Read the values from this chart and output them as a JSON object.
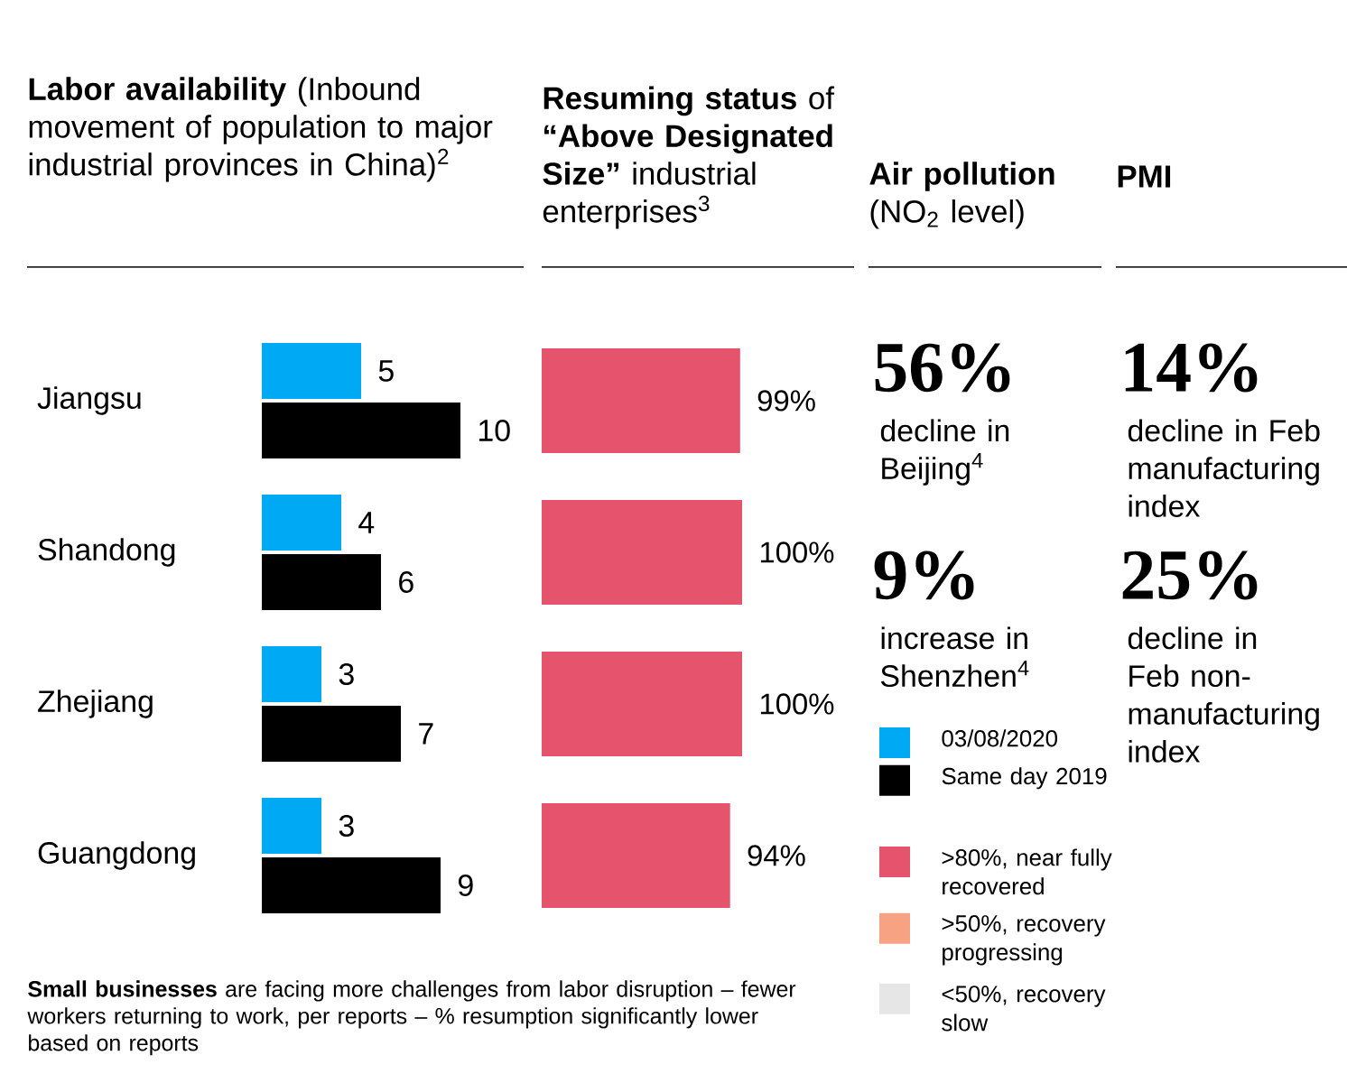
{
  "chart_data": [
    {
      "type": "bar",
      "orientation": "horizontal",
      "title": "**Labor availability** (Inbound movement of population to major industrial provinces in China)$^{2}$",
      "categories": [
        "Jiangsu",
        "Shandong",
        "Zhejiang",
        "Guangdong"
      ],
      "series": [
        {
          "name": "03/08/2020",
          "color": "#00a9f4",
          "values": [
            5,
            4,
            3,
            3
          ]
        },
        {
          "name": "Same day 2019",
          "color": "#000000",
          "values": [
            10,
            6,
            7,
            9
          ]
        }
      ],
      "data_labels": true,
      "legend": "right",
      "tick_labels": "y",
      "annotations": [
        "**Small businesses** are facing more challenges from labor disruption – fewer workers returning to work, per reports – % resumption significantly lower based on reports"
      ]
    },
    {
      "type": "bar",
      "orientation": "horizontal",
      "title": "**Resuming status** of **“Above Designated Size”** industrial enterprises$^{3}$",
      "categories": [
        null,
        null,
        null,
        null
      ],
      "series": [
        {
          "name": ">80%, near fully recovered",
          "color": "#e5546c",
          "values": [
            99,
            100,
            100,
            94
          ],
          "value_labels": [
            "99%",
            "100%",
            "100%",
            "94%"
          ]
        },
        {
          "name": ">50%, recovery progressing",
          "color": "#f6a283",
          "values": [
            null,
            null,
            null,
            null
          ]
        },
        {
          "name": "<50%, recovery slow",
          "color": "#e6e6e6",
          "values": [
            null,
            null,
            null,
            null
          ]
        }
      ],
      "legend": "right",
      "tick_labels": false
    },
    {
      "type": "other",
      "title": "**Air pollution** (NO$_{2}$ level)",
      "annotations": [
        "56%",
        "decline in Beijing$^{4}$",
        "9%",
        "increase in Shenzhen$^{4}$"
      ]
    },
    {
      "type": "other",
      "title": "**PMI**",
      "annotations": [
        "14%",
        "decline in Feb manufacturing index",
        "25%",
        "decline in Feb non-manufacturing index"
      ]
    }
  ]
}
